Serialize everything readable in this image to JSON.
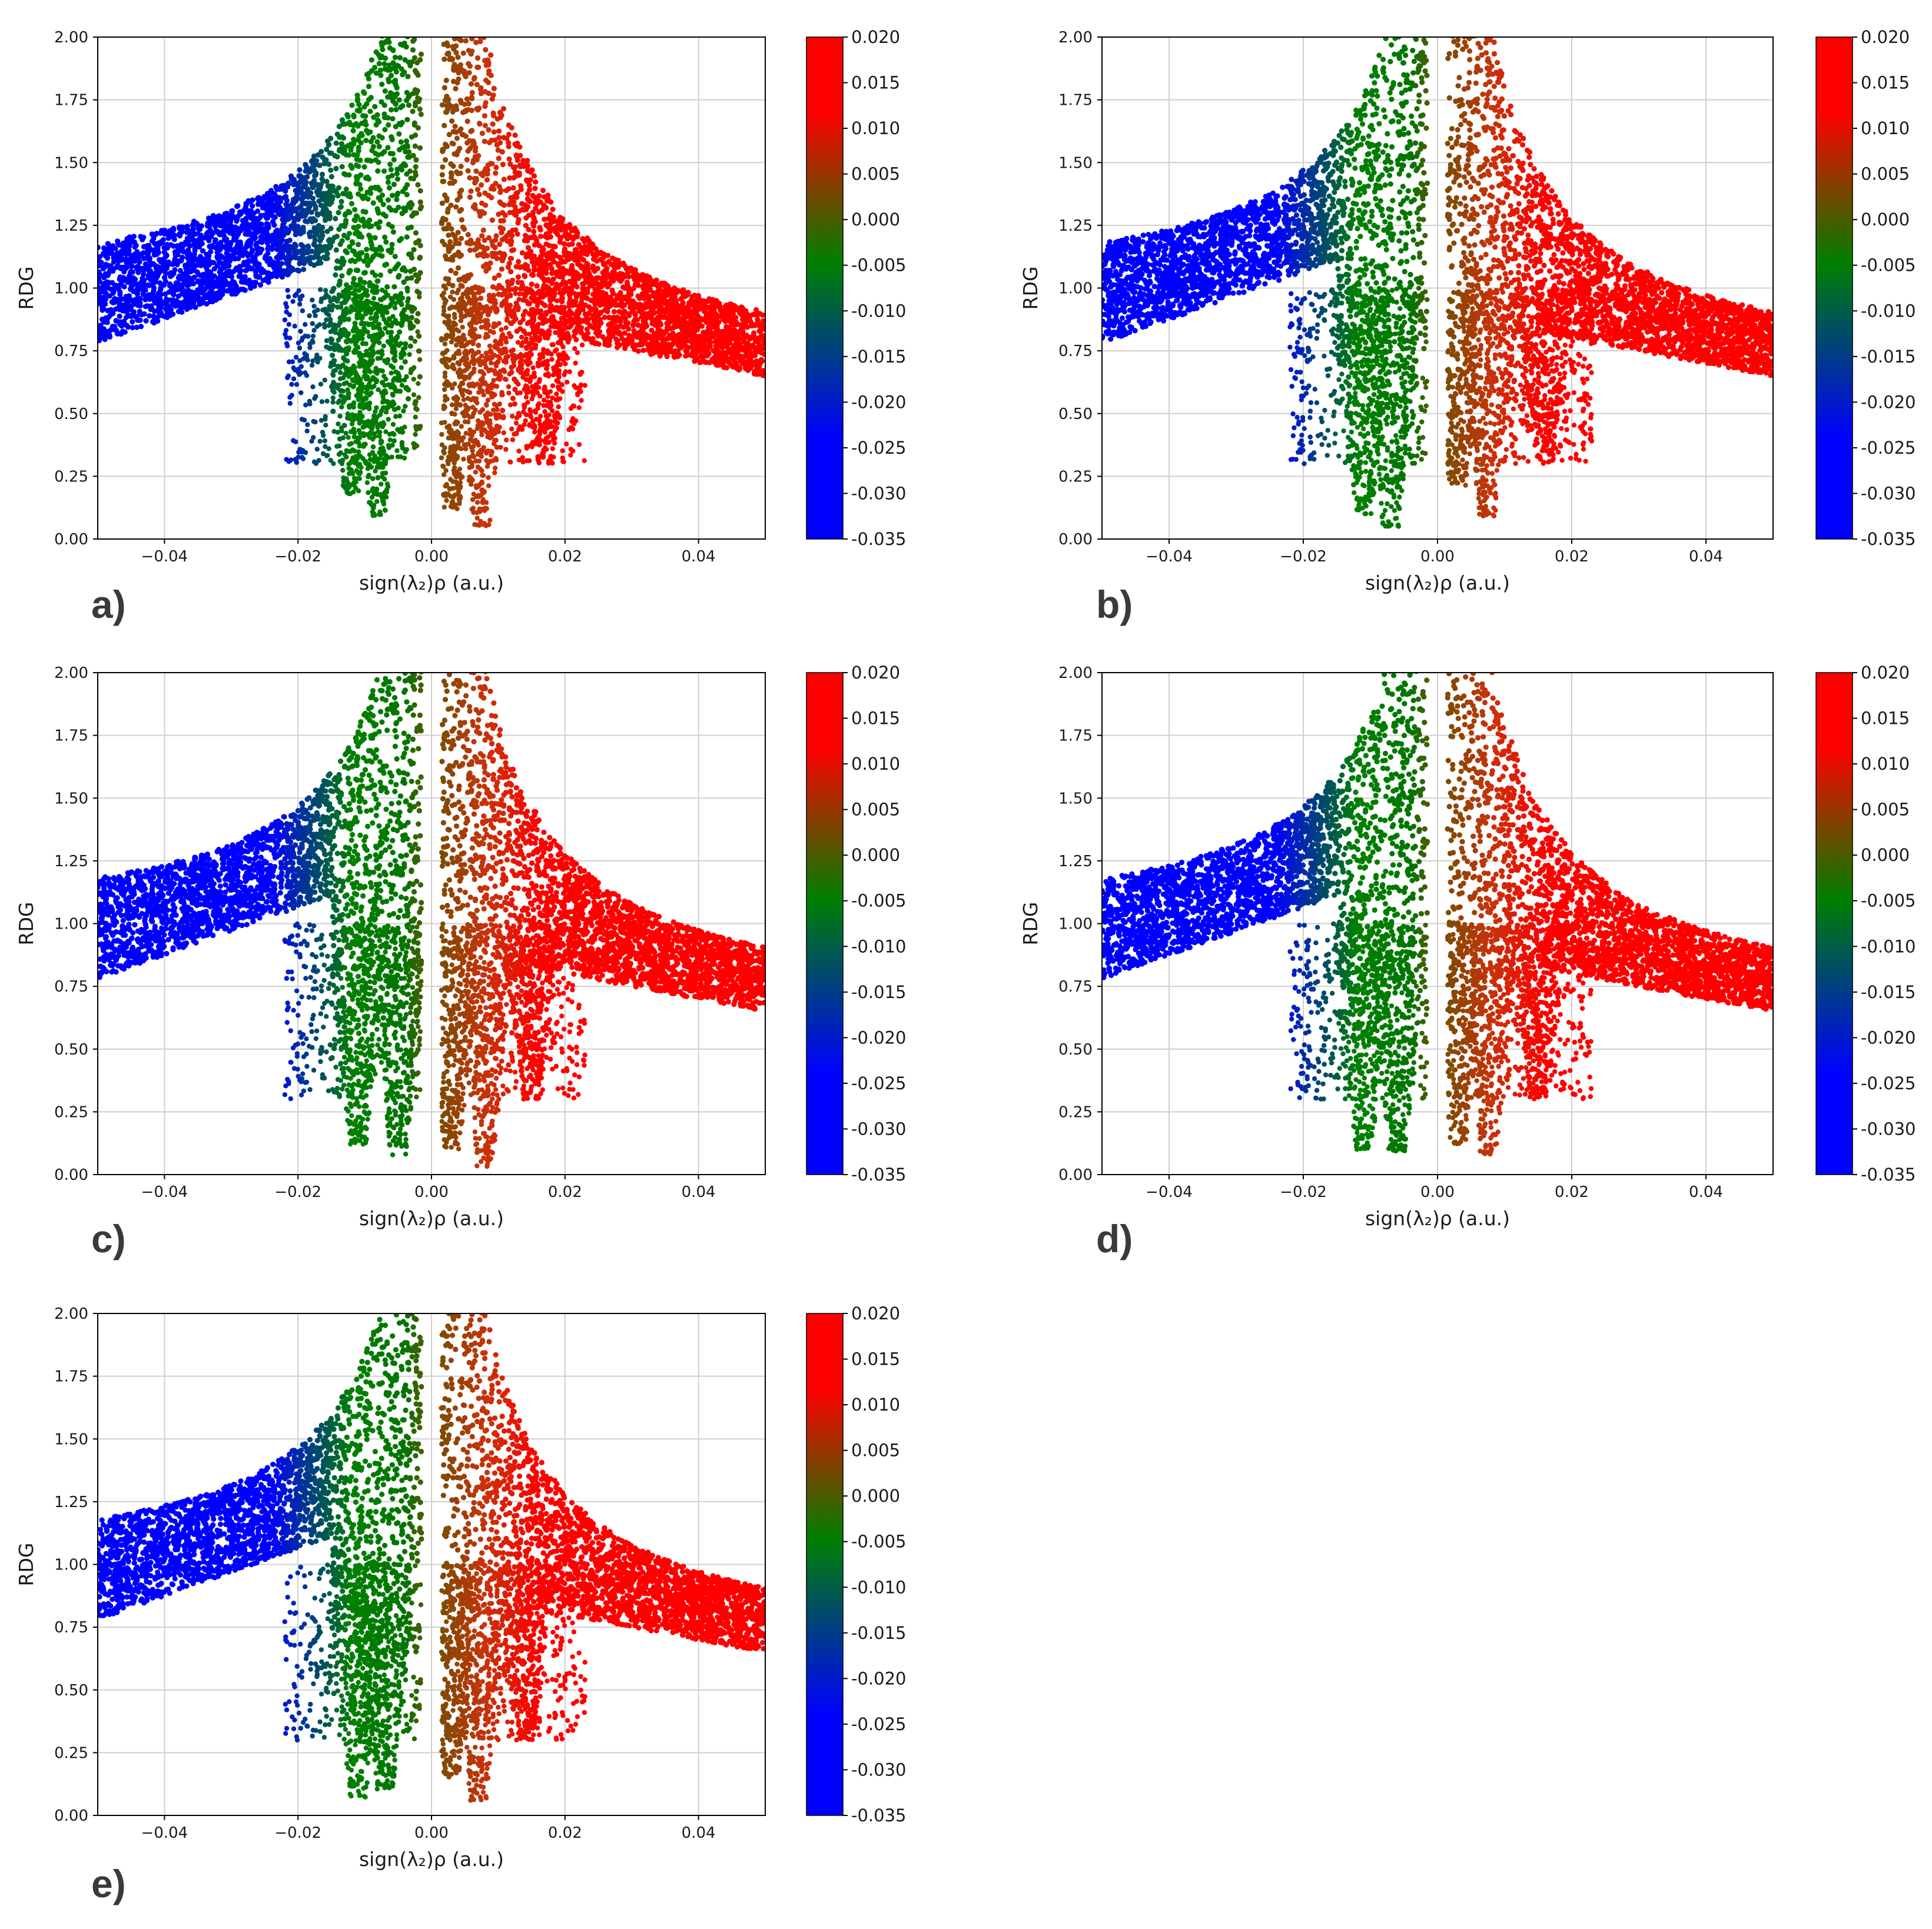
{
  "chart_data": [
    {
      "type": "scatter",
      "panel_label": "a)",
      "xlabel": "sign(λ₂)ρ (a.u.)",
      "ylabel": "RDG",
      "xlim": [
        -0.05,
        0.05
      ],
      "ylim": [
        0,
        2.0
      ],
      "xticks": [
        "−0.04",
        "−0.02",
        "0.00",
        "0.02",
        "0.04"
      ],
      "yticks": [
        "0.00",
        "0.25",
        "0.50",
        "0.75",
        "1.00",
        "1.25",
        "1.50",
        "1.75",
        "2.00"
      ],
      "grid": true,
      "colorbar": {
        "range": [
          -0.035,
          0.02
        ],
        "ticks": [
          "0.020",
          "0.015",
          "0.010",
          "0.005",
          "0.000",
          "-0.005",
          "-0.010",
          "-0.015",
          "-0.020",
          "-0.025",
          "-0.030",
          "-0.035"
        ],
        "colors": [
          "#0000ff",
          "#008000",
          "#ff0000"
        ]
      },
      "spikes": [
        {
          "x": -0.012,
          "ymin": 0.18
        },
        {
          "x": -0.008,
          "ymin": 0.09
        },
        {
          "x": 0.003,
          "ymin": 0.12
        },
        {
          "x": 0.0075,
          "ymin": 0.05
        },
        {
          "x": 0.017,
          "ymin": 0.3
        }
      ],
      "seed": 11
    },
    {
      "type": "scatter",
      "panel_label": "b)",
      "xlabel": "sign(λ₂)ρ (a.u.)",
      "ylabel": "RDG",
      "xlim": [
        -0.05,
        0.05
      ],
      "ylim": [
        0,
        2.0
      ],
      "xticks": [
        "−0.04",
        "−0.02",
        "0.00",
        "0.02",
        "0.04"
      ],
      "yticks": [
        "0.00",
        "0.25",
        "0.50",
        "0.75",
        "1.00",
        "1.25",
        "1.50",
        "1.75",
        "2.00"
      ],
      "grid": true,
      "colorbar": {
        "range": [
          -0.035,
          0.02
        ],
        "ticks": [
          "0.020",
          "0.015",
          "0.010",
          "0.005",
          "0.000",
          "-0.005",
          "-0.010",
          "-0.015",
          "-0.020",
          "-0.025",
          "-0.030",
          "-0.035"
        ],
        "colors": [
          "#0000ff",
          "#008000",
          "#ff0000"
        ]
      },
      "spikes": [
        {
          "x": -0.011,
          "ymin": 0.1
        },
        {
          "x": -0.007,
          "ymin": 0.05
        },
        {
          "x": 0.003,
          "ymin": 0.2
        },
        {
          "x": 0.0075,
          "ymin": 0.08
        },
        {
          "x": 0.016,
          "ymin": 0.3
        }
      ],
      "seed": 23
    },
    {
      "type": "scatter",
      "panel_label": "c)",
      "xlabel": "sign(λ₂)ρ (a.u.)",
      "ylabel": "RDG",
      "xlim": [
        -0.05,
        0.05
      ],
      "ylim": [
        0,
        2.0
      ],
      "xticks": [
        "−0.04",
        "−0.02",
        "0.00",
        "0.02",
        "0.04"
      ],
      "yticks": [
        "0.00",
        "0.25",
        "0.50",
        "0.75",
        "1.00",
        "1.25",
        "1.50",
        "1.75",
        "2.00"
      ],
      "grid": true,
      "colorbar": {
        "range": [
          -0.035,
          0.02
        ],
        "ticks": [
          "0.020",
          "0.015",
          "0.010",
          "0.005",
          "0.000",
          "-0.005",
          "-0.010",
          "-0.015",
          "-0.020",
          "-0.025",
          "-0.030",
          "-0.035"
        ],
        "colors": [
          "#0000ff",
          "#008000",
          "#ff0000"
        ]
      },
      "spikes": [
        {
          "x": -0.011,
          "ymin": 0.12
        },
        {
          "x": -0.005,
          "ymin": 0.07
        },
        {
          "x": 0.003,
          "ymin": 0.1
        },
        {
          "x": 0.008,
          "ymin": 0.03
        },
        {
          "x": 0.015,
          "ymin": 0.3
        }
      ],
      "seed": 37
    },
    {
      "type": "scatter",
      "panel_label": "d)",
      "xlabel": "sign(λ₂)ρ (a.u.)",
      "ylabel": "RDG",
      "xlim": [
        -0.05,
        0.05
      ],
      "ylim": [
        0,
        2.0
      ],
      "xticks": [
        "−0.04",
        "−0.02",
        "0.00",
        "0.02",
        "0.04"
      ],
      "yticks": [
        "0.00",
        "0.25",
        "0.50",
        "0.75",
        "1.00",
        "1.25",
        "1.50",
        "1.75",
        "2.00"
      ],
      "grid": true,
      "colorbar": {
        "range": [
          -0.035,
          0.02
        ],
        "ticks": [
          "0.020",
          "0.015",
          "0.010",
          "0.005",
          "0.000",
          "-0.005",
          "-0.010",
          "-0.015",
          "-0.020",
          "-0.025",
          "-0.030",
          "-0.035"
        ],
        "colors": [
          "#0000ff",
          "#008000",
          "#ff0000"
        ]
      },
      "spikes": [
        {
          "x": -0.011,
          "ymin": 0.1
        },
        {
          "x": -0.006,
          "ymin": 0.08
        },
        {
          "x": 0.003,
          "ymin": 0.12
        },
        {
          "x": 0.0075,
          "ymin": 0.08
        },
        {
          "x": 0.015,
          "ymin": 0.3
        }
      ],
      "seed": 41
    },
    {
      "type": "scatter",
      "panel_label": "e)",
      "xlabel": "sign(λ₂)ρ (a.u.)",
      "ylabel": "RDG",
      "xlim": [
        -0.05,
        0.05
      ],
      "ylim": [
        0,
        2.0
      ],
      "xticks": [
        "−0.04",
        "−0.02",
        "0.00",
        "0.02",
        "0.04"
      ],
      "yticks": [
        "0.00",
        "0.25",
        "0.50",
        "0.75",
        "1.00",
        "1.25",
        "1.50",
        "1.75",
        "2.00"
      ],
      "grid": true,
      "colorbar": {
        "range": [
          -0.035,
          0.02
        ],
        "ticks": [
          "0.020",
          "0.015",
          "0.010",
          "0.005",
          "0.000",
          "-0.005",
          "-0.010",
          "-0.015",
          "-0.020",
          "-0.025",
          "-0.030",
          "-0.035"
        ],
        "colors": [
          "#0000ff",
          "#008000",
          "#ff0000"
        ]
      },
      "spikes": [
        {
          "x": -0.011,
          "ymin": 0.07
        },
        {
          "x": -0.007,
          "ymin": 0.1
        },
        {
          "x": 0.003,
          "ymin": 0.15
        },
        {
          "x": 0.007,
          "ymin": 0.06
        },
        {
          "x": 0.014,
          "ymin": 0.3
        }
      ],
      "seed": 53
    }
  ]
}
